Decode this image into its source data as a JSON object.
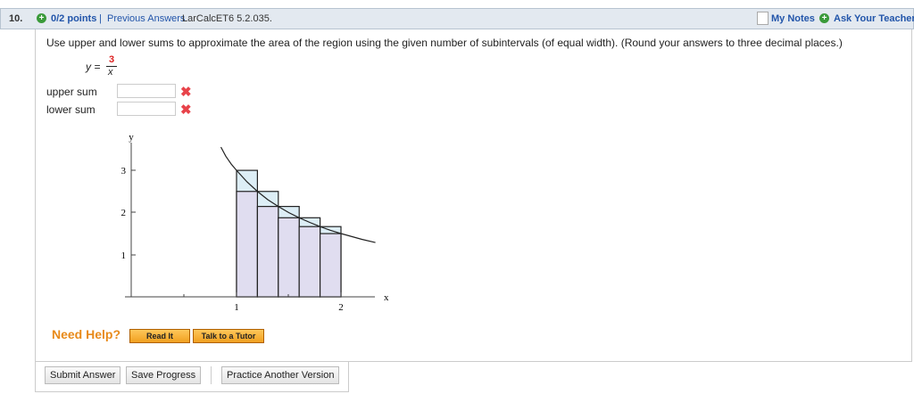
{
  "header": {
    "number": "10.",
    "points": "0/2 points",
    "separator": "|",
    "previous_answers": "Previous Answers",
    "problem_id": "LarCalcET6 5.2.035.",
    "my_notes": "My Notes",
    "ask_teacher": "Ask Your Teacher"
  },
  "question": {
    "text": "Use upper and lower sums to approximate the area of the region using the given number of subintervals (of equal width). (Round your answers to three decimal places.)",
    "formula": {
      "lhs": "y =",
      "numerator": "3",
      "denominator": "x"
    },
    "fields": [
      {
        "label": "upper sum"
      },
      {
        "label": "lower sum"
      }
    ]
  },
  "graph": {
    "y_label": "y",
    "x_label": "x",
    "yticks": [
      "3",
      "2",
      "1"
    ],
    "xticks": [
      "1",
      "2"
    ]
  },
  "help": {
    "label": "Need Help?",
    "buttons": [
      "Read It",
      "Talk to a Tutor"
    ]
  },
  "actions": [
    "Submit Answer",
    "Save Progress",
    "Practice Another Version"
  ]
}
